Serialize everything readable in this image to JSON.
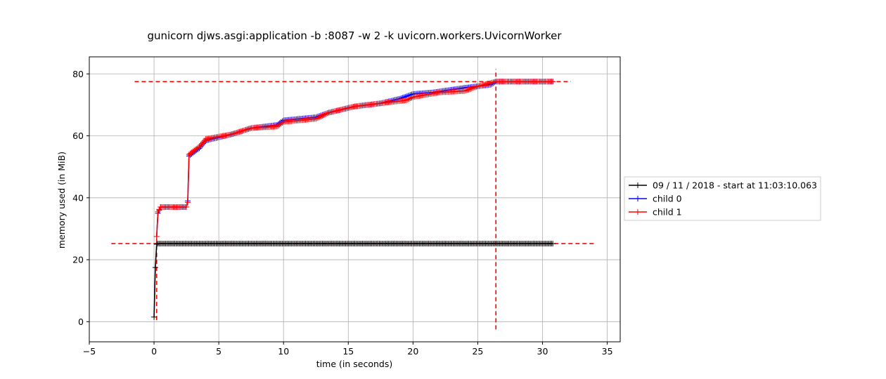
{
  "chart_data": {
    "type": "line",
    "title": "gunicorn djws.asgi:application -b :8087 -w 2 -k uvicorn.workers.UvicornWorker",
    "xlabel": "time (in seconds)",
    "ylabel": "memory used (in MiB)",
    "xlim": [
      -5,
      36
    ],
    "ylim": [
      -6.5,
      85.5
    ],
    "xticks": [
      -5,
      0,
      5,
      10,
      15,
      20,
      25,
      30,
      35
    ],
    "yticks": [
      0,
      20,
      40,
      60,
      80
    ],
    "grid": true,
    "legend_position": "right",
    "colors": {
      "main": "#000000",
      "child0": "#0000ff",
      "child1": "#ff0000",
      "peak_lines": "#ff0000",
      "grid": "#b0b0b0"
    },
    "series": [
      {
        "name": "09 / 11 / 2018 - start at 11:03:10.063",
        "color": "#000000",
        "x": [
          0.0,
          0.1,
          0.2,
          0.3,
          30.8
        ],
        "y": [
          1.5,
          17.5,
          25.0,
          25.2,
          25.2
        ],
        "sample_interval": 0.1
      },
      {
        "name": "child 0",
        "color": "#0000ff",
        "x": [
          0.2,
          0.3,
          0.5,
          2.5,
          2.6,
          2.7,
          3.0,
          3.5,
          4.0,
          6.0,
          7.5,
          9.5,
          10.0,
          12.5,
          13.5,
          15.5,
          17.5,
          19.0,
          20.0,
          21.5,
          24.0,
          26.0,
          26.4,
          30.8
        ],
        "y": [
          27.5,
          35.0,
          37.0,
          37.0,
          39.0,
          53.5,
          54.5,
          56.0,
          58.5,
          60.5,
          62.5,
          63.5,
          65.0,
          66.0,
          67.5,
          69.5,
          70.5,
          72.0,
          73.5,
          74.0,
          75.5,
          76.5,
          77.5,
          77.5
        ],
        "sample_interval": 0.1
      },
      {
        "name": "child 1",
        "color": "#ff0000",
        "x": [
          0.2,
          0.3,
          0.5,
          2.5,
          2.6,
          2.7,
          3.0,
          3.5,
          4.0,
          6.0,
          7.5,
          9.5,
          10.0,
          12.5,
          13.5,
          15.5,
          17.5,
          19.5,
          20.0,
          22.0,
          24.0,
          25.0,
          26.4,
          30.8
        ],
        "y": [
          27.5,
          35.5,
          37.0,
          37.0,
          38.5,
          54.0,
          55.0,
          56.5,
          59.0,
          60.5,
          62.5,
          63.0,
          64.5,
          65.5,
          67.5,
          69.5,
          70.5,
          71.5,
          72.5,
          74.0,
          74.5,
          76.0,
          77.5,
          77.5
        ],
        "sample_interval": 0.1
      }
    ],
    "reference_lines": [
      {
        "orientation": "horizontal",
        "value": 77.5,
        "from": -1.5,
        "to": 32.2,
        "color": "#ff0000"
      },
      {
        "orientation": "horizontal",
        "value": 25.2,
        "from": -3.3,
        "to": 34.0,
        "color": "#ff0000"
      },
      {
        "orientation": "vertical",
        "value": 26.4,
        "from": -2.5,
        "to": 81.5,
        "color": "#ff0000"
      },
      {
        "orientation": "vertical",
        "value": 0.2,
        "from": 0.5,
        "to": 27.0,
        "color": "#ff0000"
      }
    ]
  }
}
